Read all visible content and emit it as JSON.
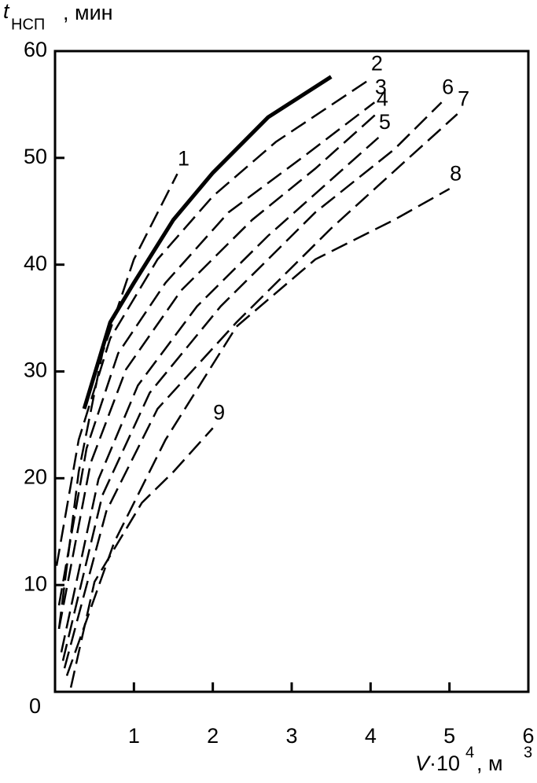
{
  "chart_data": {
    "type": "line",
    "ylabel": [
      "t",
      "НСП",
      ", мин"
    ],
    "xlabel": [
      "V",
      "·10",
      "4",
      ", м",
      "3"
    ],
    "xlim": [
      0,
      6
    ],
    "ylim": [
      0,
      60
    ],
    "xticks": [
      1,
      2,
      3,
      4,
      5,
      6
    ],
    "yticks": [
      0,
      10,
      20,
      30,
      40,
      50,
      60
    ],
    "color": "#000000",
    "series": [
      {
        "name": "1",
        "style": "dashed",
        "x": [
          0.05,
          0.3,
          0.6,
          1.0,
          1.55
        ],
        "values": [
          5.9,
          20.6,
          31.7,
          40.5,
          48.5
        ]
      },
      {
        "style": "solid",
        "x": [
          0.37,
          0.7,
          1.0,
          1.5,
          2.0,
          2.7,
          3.5
        ],
        "values": [
          26.5,
          34.6,
          38.3,
          44.2,
          48.6,
          53.8,
          57.6
        ]
      },
      {
        "name": "2",
        "style": "dashed",
        "x": [
          0.02,
          0.3,
          0.7,
          1.3,
          2.0,
          2.8,
          4.0
        ],
        "values": [
          11.8,
          23.6,
          33.1,
          40.5,
          46.4,
          51.5,
          57.4
        ]
      },
      {
        "name": "3",
        "style": "dashed",
        "x": [
          0.05,
          0.4,
          0.8,
          1.4,
          2.2,
          3.2,
          4.05
        ],
        "values": [
          8.1,
          22.8,
          31.7,
          38.3,
          44.9,
          50.4,
          55.2
        ]
      },
      {
        "name": "4",
        "style": "dashed",
        "x": [
          0.05,
          0.45,
          0.9,
          1.6,
          2.5,
          3.3,
          4.07
        ],
        "values": [
          5.9,
          21.4,
          30.2,
          37.6,
          44.2,
          49.0,
          54.1
        ]
      },
      {
        "name": "5",
        "style": "dashed",
        "x": [
          0.08,
          0.55,
          1.05,
          1.8,
          2.7,
          4.1
        ],
        "values": [
          3.7,
          19.9,
          28.7,
          36.1,
          42.7,
          51.9
        ]
      },
      {
        "name": "6",
        "style": "dashed",
        "x": [
          0.1,
          0.6,
          1.2,
          2.1,
          3.3,
          4.3,
          4.9
        ],
        "values": [
          2.9,
          18.4,
          28.0,
          36.1,
          44.9,
          50.8,
          55.2
        ]
      },
      {
        "name": "7",
        "style": "dashed",
        "x": [
          0.12,
          0.65,
          1.3,
          2.3,
          3.5,
          4.5,
          5.1
        ],
        "values": [
          2.2,
          16.9,
          26.5,
          34.6,
          43.4,
          50.1,
          54.1
        ]
      },
      {
        "name": "8",
        "style": "dashed",
        "x": [
          0.15,
          0.75,
          1.4,
          2.3,
          3.3,
          4.3,
          5.0
        ],
        "values": [
          1.5,
          14.0,
          23.6,
          34.2,
          40.5,
          44.2,
          47.1
        ]
      },
      {
        "name": "9",
        "style": "dashed",
        "x": [
          0.2,
          0.5,
          1.1,
          1.5,
          2.0
        ],
        "values": [
          0.4,
          10.3,
          17.7,
          20.6,
          24.7
        ]
      }
    ]
  }
}
